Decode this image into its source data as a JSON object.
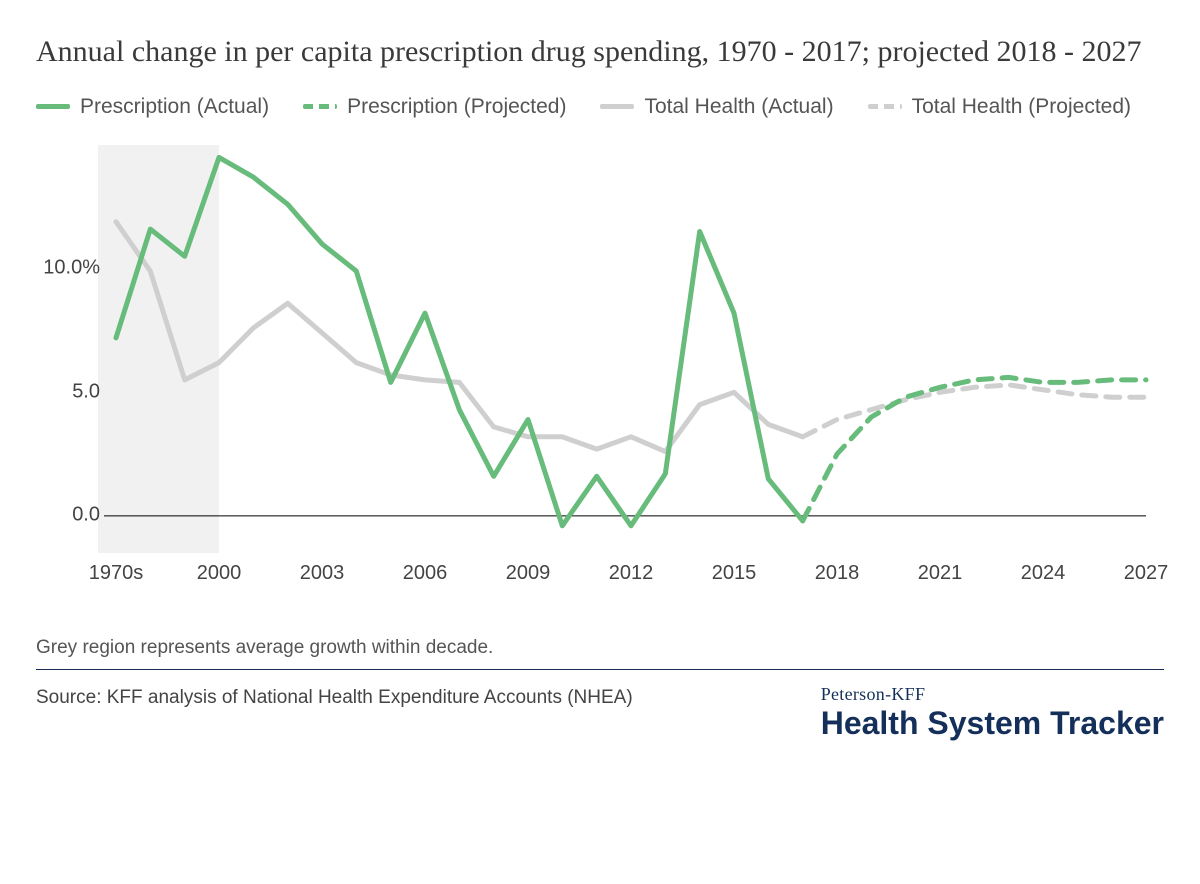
{
  "title": "Annual change in per capita prescription drug spending, 1970 - 2017; projected 2018 - 2027",
  "legend": [
    {
      "label": "Prescription (Actual)",
      "style": "solid-green"
    },
    {
      "label": "Prescription (Projected)",
      "style": "dash-green"
    },
    {
      "label": "Total Health (Actual)",
      "style": "solid-grey"
    },
    {
      "label": "Total Health (Projected)",
      "style": "dash-grey"
    }
  ],
  "note": "Grey region represents average growth within decade.",
  "source": "Source: KFF analysis of National Health Expenditure Accounts (NHEA)",
  "brand": {
    "top": "Peterson-KFF",
    "bottom": "Health System Tracker"
  },
  "chart": {
    "type": "line",
    "background_color": "#ffffff",
    "decade_band_color": "#f1f1f1",
    "axis_color": "#000000",
    "tick_font_size": 20,
    "line_width": 5,
    "colors": {
      "prescription": "#67bb7b",
      "total_health": "#cfcfcf"
    },
    "dash_pattern": "14 10",
    "ylim": [
      -1.5,
      15.0
    ],
    "yticks": [
      0.0,
      5.0,
      10.0
    ],
    "ytick_labels": [
      "0.0",
      "5.0",
      "10.0%"
    ],
    "x_categories": [
      "1970s",
      "1980s",
      "1990s",
      "2000",
      "2001",
      "2002",
      "2003",
      "2004",
      "2005",
      "2006",
      "2007",
      "2008",
      "2009",
      "2010",
      "2011",
      "2012",
      "2013",
      "2014",
      "2015",
      "2016",
      "2017",
      "2018",
      "2019",
      "2020",
      "2021",
      "2022",
      "2023",
      "2024",
      "2025",
      "2026",
      "2027"
    ],
    "xticks_show": [
      "1970s",
      "2000",
      "2003",
      "2006",
      "2009",
      "2012",
      "2015",
      "2018",
      "2021",
      "2024",
      "2027"
    ],
    "decade_band_covers": [
      "1970s",
      "1980s",
      "1990s",
      "2000"
    ],
    "series": {
      "prescription_actual": {
        "color": "#67bb7b",
        "dashed": false,
        "points": [
          [
            "1970s",
            7.2
          ],
          [
            "1980s",
            11.6
          ],
          [
            "1990s",
            10.5
          ],
          [
            "2000",
            14.5
          ],
          [
            "2001",
            13.7
          ],
          [
            "2002",
            12.6
          ],
          [
            "2003",
            11.0
          ],
          [
            "2004",
            9.9
          ],
          [
            "2005",
            5.4
          ],
          [
            "2006",
            8.2
          ],
          [
            "2007",
            4.3
          ],
          [
            "2008",
            1.6
          ],
          [
            "2009",
            3.9
          ],
          [
            "2010",
            -0.4
          ],
          [
            "2011",
            1.6
          ],
          [
            "2012",
            -0.4
          ],
          [
            "2013",
            1.7
          ],
          [
            "2014",
            11.5
          ],
          [
            "2015",
            8.2
          ],
          [
            "2016",
            1.5
          ],
          [
            "2017",
            -0.2
          ]
        ]
      },
      "prescription_projected": {
        "color": "#67bb7b",
        "dashed": true,
        "points": [
          [
            "2017",
            -0.2
          ],
          [
            "2018",
            2.5
          ],
          [
            "2019",
            4.0
          ],
          [
            "2020",
            4.8
          ],
          [
            "2021",
            5.2
          ],
          [
            "2022",
            5.5
          ],
          [
            "2023",
            5.6
          ],
          [
            "2024",
            5.4
          ],
          [
            "2025",
            5.4
          ],
          [
            "2026",
            5.5
          ],
          [
            "2027",
            5.5
          ]
        ]
      },
      "total_health_actual": {
        "color": "#cfcfcf",
        "dashed": false,
        "points": [
          [
            "1970s",
            11.9
          ],
          [
            "1980s",
            9.9
          ],
          [
            "1990s",
            5.5
          ],
          [
            "2000",
            6.2
          ],
          [
            "2001",
            7.6
          ],
          [
            "2002",
            8.6
          ],
          [
            "2003",
            7.4
          ],
          [
            "2004",
            6.2
          ],
          [
            "2005",
            5.7
          ],
          [
            "2006",
            5.5
          ],
          [
            "2007",
            5.4
          ],
          [
            "2008",
            3.6
          ],
          [
            "2009",
            3.2
          ],
          [
            "2010",
            3.2
          ],
          [
            "2011",
            2.7
          ],
          [
            "2012",
            3.2
          ],
          [
            "2013",
            2.6
          ],
          [
            "2014",
            4.5
          ],
          [
            "2015",
            5.0
          ],
          [
            "2016",
            3.7
          ],
          [
            "2017",
            3.2
          ]
        ]
      },
      "total_health_projected": {
        "color": "#cfcfcf",
        "dashed": true,
        "points": [
          [
            "2017",
            3.2
          ],
          [
            "2018",
            3.9
          ],
          [
            "2019",
            4.3
          ],
          [
            "2020",
            4.7
          ],
          [
            "2021",
            5.0
          ],
          [
            "2022",
            5.2
          ],
          [
            "2023",
            5.3
          ],
          [
            "2024",
            5.1
          ],
          [
            "2025",
            4.9
          ],
          [
            "2026",
            4.8
          ],
          [
            "2027",
            4.8
          ]
        ]
      }
    }
  }
}
